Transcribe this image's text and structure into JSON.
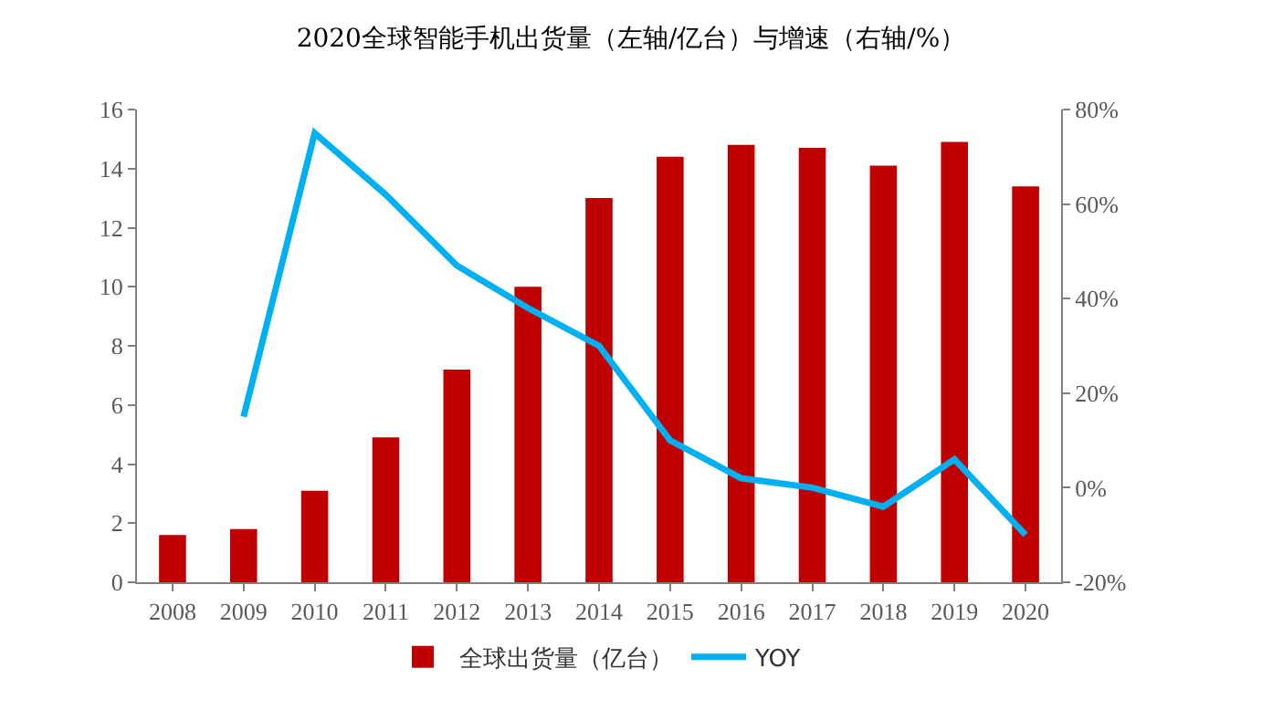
{
  "chart_data": {
    "type": "bar",
    "title": "2020全球智能手机出货量（左轴/亿台）与增速（右轴/%）",
    "categories": [
      "2008",
      "2009",
      "2010",
      "2011",
      "2012",
      "2013",
      "2014",
      "2015",
      "2016",
      "2017",
      "2018",
      "2019",
      "2020"
    ],
    "series": [
      {
        "name": "全球出货量（亿台）",
        "color": "#c00000",
        "values": [
          1.6,
          1.8,
          3.1,
          4.9,
          7.2,
          10.0,
          13.0,
          14.4,
          14.8,
          14.7,
          14.1,
          14.9,
          13.4
        ]
      },
      {
        "name": "YOY",
        "type": "line",
        "axis": "y2",
        "color": "#00b0f0",
        "values": [
          null,
          15,
          75,
          62,
          47,
          38,
          30,
          10,
          2,
          0,
          -4,
          6,
          -10
        ]
      }
    ],
    "ylim": [
      0,
      16
    ],
    "yticks": [
      0,
      2,
      4,
      6,
      8,
      10,
      12,
      14,
      16
    ],
    "y2lim": [
      -20,
      80
    ],
    "y2ticks": [
      {
        "value": -20,
        "label": "-20%"
      },
      {
        "value": 0,
        "label": "0%"
      },
      {
        "value": 20,
        "label": "20%"
      },
      {
        "value": 40,
        "label": "40%"
      },
      {
        "value": 60,
        "label": "60%"
      },
      {
        "value": 80,
        "label": "80%"
      }
    ],
    "legend": "bottom",
    "grid": false,
    "marker": "none",
    "line_style": "solid"
  }
}
